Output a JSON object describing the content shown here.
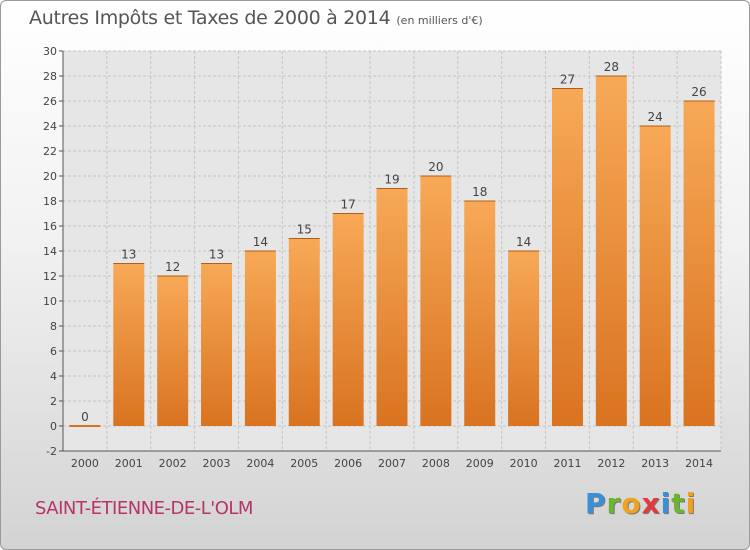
{
  "header": {
    "title": "Autres Impôts et Taxes de 2000 à 2014",
    "unit": "(en milliers d'€)"
  },
  "footer": {
    "commune": "SAINT-ÉTIENNE-DE-L'OLM",
    "logo_letters": [
      "P",
      "r",
      "o",
      "x",
      "i",
      "t",
      "i"
    ],
    "logo_colors": [
      "#3a8fd6",
      "#6bb533",
      "#f0a21f",
      "#e33b3b",
      "#3a8fd6",
      "#6bb533",
      "#f0a21f"
    ]
  },
  "chart_data": {
    "type": "bar",
    "categories": [
      "2000",
      "2001",
      "2002",
      "2003",
      "2004",
      "2005",
      "2006",
      "2007",
      "2008",
      "2009",
      "2010",
      "2011",
      "2012",
      "2013",
      "2014"
    ],
    "values": [
      0,
      13,
      12,
      13,
      14,
      15,
      17,
      19,
      20,
      18,
      14,
      27,
      28,
      24,
      26
    ],
    "ylim": [
      -2,
      30
    ],
    "yticks": [
      -2,
      0,
      2,
      4,
      6,
      8,
      10,
      12,
      14,
      16,
      18,
      20,
      22,
      24,
      26,
      28,
      30
    ],
    "grid": true,
    "bar_color_top": "#f7a957",
    "bar_color_bottom": "#d97320",
    "xlabel": "",
    "ylabel": ""
  }
}
